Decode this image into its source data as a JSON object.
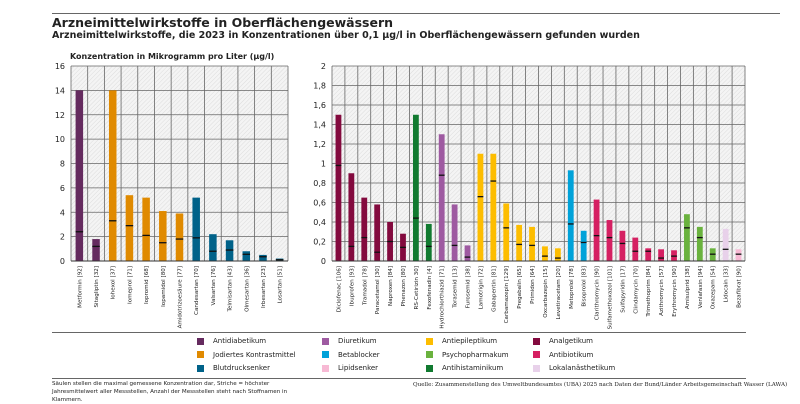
{
  "title": "Arzneimittelwirkstoffe in Oberflächengewässern",
  "subtitle": "Arzneimittelwirkstoffe, die 2023 in Konzentrationen über 0,1 µg/l in Oberflächengewässern gefunden wurden",
  "note": "Säulen stellen die maximal gemessene Konzentration dar, Striche = höchster Jahresmittelwert aller Messstellen, Anzahl der Messstellen steht nach Stoffnamen in Klammern.",
  "source": "Quelle: Zusammenstellung des Umweltbundesamtes (UBA) 2025 nach Daten der Bund/Länder Arbeitsgemeinschaft Wasser (LAWA)",
  "categories": [
    {
      "name": "Antidiabetikum",
      "color": "#652b5f"
    },
    {
      "name": "Jodiertes Kontrastmittel",
      "color": "#e08a00"
    },
    {
      "name": "Blutdrucksenker",
      "color": "#006289"
    },
    {
      "name": "Diuretikum",
      "color": "#9e5aa1"
    },
    {
      "name": "Betablocker",
      "color": "#00a2d9"
    },
    {
      "name": "Lipidsenker",
      "color": "#f7b9d4"
    },
    {
      "name": "Antiepileptikum",
      "color": "#fdbd00"
    },
    {
      "name": "Psychopharmakum",
      "color": "#6ab23e"
    },
    {
      "name": "Antihistaminikum",
      "color": "#117a30"
    },
    {
      "name": "Analgetikum",
      "color": "#830a3e"
    },
    {
      "name": "Antibiotikum",
      "color": "#d52062"
    },
    {
      "name": "Lokalanästhetikum",
      "color": "#e8d1ea"
    }
  ],
  "chart_data": [
    {
      "type": "bar",
      "ylabel": "Konzentration in Mikrogramm pro Liter (µg/l)",
      "ylim": [
        0,
        16
      ],
      "yticks": [
        "0",
        "2",
        "4",
        "6",
        "8",
        "10",
        "12",
        "14",
        "16"
      ],
      "grid": true,
      "categories": [
        "Metformin [92]",
        "Sitagliptin [32]",
        "Iohexol [37]",
        "Iomeprol [71]",
        "Iopromid [68]",
        "Iopamidol [80]",
        "Amidotrizoesäure [77]",
        "Candesartan [70]",
        "Valsartan [76]",
        "Telmisartan [43]",
        "Olmesartan [36]",
        "Irbesartan [23]",
        "Losartan [51]"
      ],
      "group": [
        0,
        0,
        1,
        1,
        1,
        1,
        1,
        2,
        2,
        2,
        2,
        2,
        2
      ],
      "max": [
        14,
        1.8,
        14,
        5.4,
        5.2,
        4.1,
        3.9,
        5.2,
        2.2,
        1.7,
        0.8,
        0.5,
        0.2
      ],
      "annual_mean_max": [
        2.4,
        1.2,
        3.3,
        2.9,
        2.1,
        1.5,
        1.8,
        1.9,
        0.8,
        0.9,
        0.55,
        0.35,
        0.1
      ]
    },
    {
      "type": "bar",
      "ylim": [
        0,
        2
      ],
      "yticks": [
        "0",
        "0,2",
        "0,4",
        "0,6",
        "0,8",
        "1",
        "1,2",
        "1,4",
        "1,6",
        "1,8",
        "2"
      ],
      "grid": true,
      "categories": [
        "Diclofenac [106]",
        "Ibuprofen [93]",
        "Tramadol [78]",
        "Paracetamol [30]",
        "Naproxen [84]",
        "Phenazon [80]",
        "RS-Cetirizin 30]",
        "Fexofenadin [4]",
        "Hydrochlorthiazid [71]",
        "Torasemid [13]",
        "Furosemid [38]",
        "Lamotrigin [72]",
        "Gabapentin [81]",
        "Carbamazepin [129]",
        "Pregabalin [65]",
        "Primidon [64]",
        "Oxcarbazepin [15]",
        "Levetiracetam [20]",
        "Metoprolol [78]",
        "Bisoprolol [83]",
        "Clarithromycin [90]",
        "Sulfamethoxazol [101]",
        "Sulfapyridin [17]",
        "Clindamycin [70]",
        "Trimethoprim [84]",
        "Azithromycin [57]",
        "Erythromycin [90]",
        "Amisulprid [38]",
        "Venlafaxin [94]",
        "Oxazepam [54]",
        "Lidocain [33]",
        "Bezafibrat [90]"
      ],
      "group": [
        9,
        9,
        9,
        9,
        9,
        9,
        8,
        8,
        3,
        3,
        3,
        6,
        6,
        6,
        6,
        6,
        6,
        6,
        4,
        4,
        10,
        10,
        10,
        10,
        10,
        10,
        10,
        7,
        7,
        7,
        11,
        5
      ],
      "max": [
        1.5,
        0.9,
        0.65,
        0.58,
        0.4,
        0.28,
        1.5,
        0.38,
        1.3,
        0.58,
        0.16,
        1.1,
        1.1,
        0.59,
        0.37,
        0.35,
        0.15,
        0.13,
        0.93,
        0.31,
        0.63,
        0.42,
        0.31,
        0.24,
        0.13,
        0.12,
        0.11,
        0.48,
        0.35,
        0.13,
        0.33,
        0.12
      ],
      "annual_mean_max": [
        0.98,
        0.15,
        0.24,
        0.09,
        0.2,
        0.14,
        0.44,
        0.15,
        0.88,
        0.16,
        0.04,
        0.66,
        0.82,
        0.34,
        0.17,
        0.16,
        0.05,
        0.03,
        0.38,
        0.19,
        0.26,
        0.24,
        0.18,
        0.1,
        0.1,
        0.03,
        0.05,
        0.34,
        0.24,
        0.07,
        0.12,
        0.07
      ]
    }
  ]
}
